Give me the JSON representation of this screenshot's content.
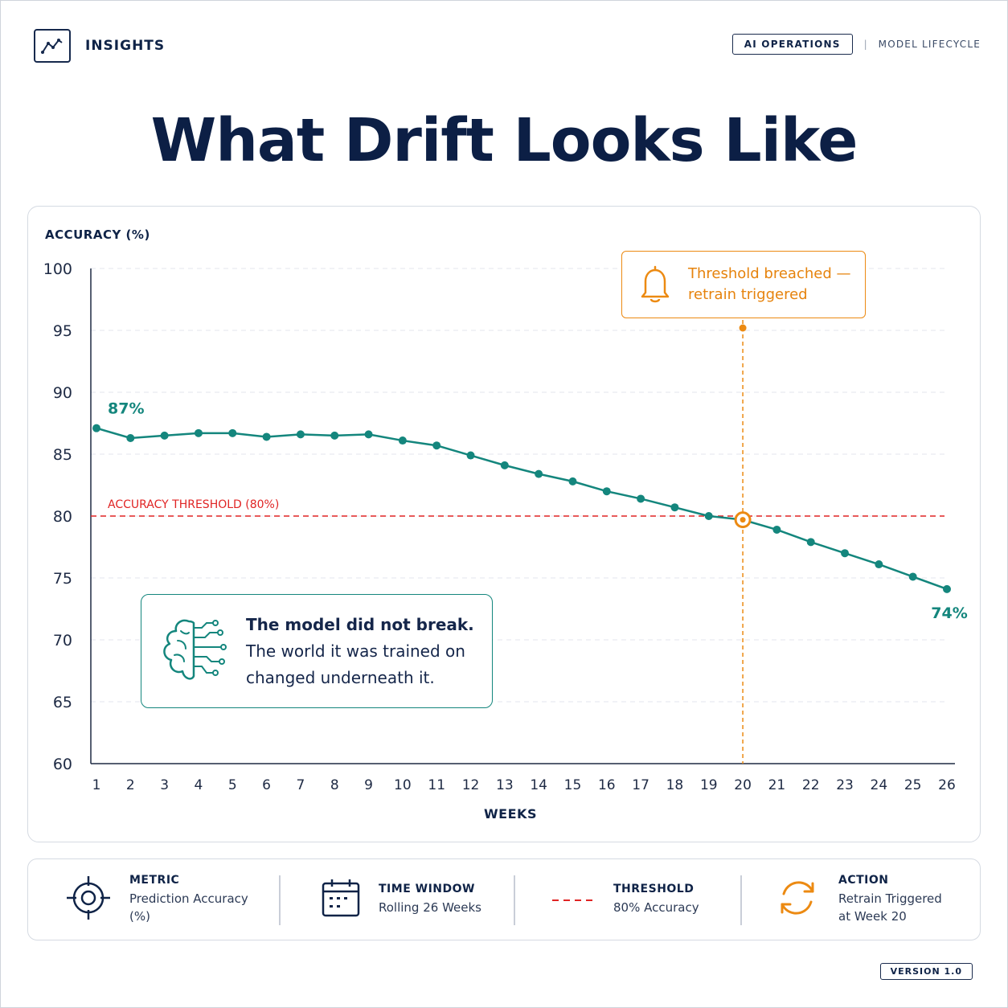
{
  "header": {
    "brand": "INSIGHTS",
    "badge": "AI OPERATIONS",
    "separator": "|",
    "crumb": "MODEL LIFECYCLE"
  },
  "title": "What Drift Looks Like",
  "chart_data": {
    "type": "line",
    "ylabel": "ACCURACY (%)",
    "xlabel": "WEEKS",
    "ylim": [
      60,
      100
    ],
    "yticks": [
      100,
      95,
      90,
      85,
      80,
      75,
      70,
      65,
      60
    ],
    "x": [
      1,
      2,
      3,
      4,
      5,
      6,
      7,
      8,
      9,
      10,
      11,
      12,
      13,
      14,
      15,
      16,
      17,
      18,
      19,
      20,
      21,
      22,
      23,
      24,
      25,
      26
    ],
    "series": [
      {
        "values": [
          87.1,
          86.3,
          86.5,
          86.7,
          86.7,
          86.4,
          86.6,
          86.5,
          86.6,
          86.1,
          85.7,
          84.9,
          84.1,
          83.4,
          82.8,
          82.0,
          81.4,
          80.7,
          80.0,
          79.7,
          78.9,
          77.9,
          77.0,
          76.1,
          75.1,
          74.1
        ]
      }
    ],
    "start_label": "87%",
    "end_label": "74%",
    "threshold": {
      "value": 80,
      "label": "ACCURACY THRESHOLD (80%)"
    },
    "event_week": 20,
    "grid": true,
    "colors": {
      "line": "#14867d",
      "threshold": "#e02424",
      "event": "#ec8a12",
      "axis": "#1e2a44",
      "grid": "#e3e6ec"
    }
  },
  "alert": {
    "line1": "Threshold breached —",
    "line2": "retrain triggered",
    "icon": "bell-icon"
  },
  "note": {
    "bold": "The model did not break.",
    "line2": "The world it was trained on",
    "line3": "changed underneath it.",
    "icon": "brain-circuit-icon"
  },
  "legend": {
    "metric": {
      "title": "METRIC",
      "value1": "Prediction Accuracy",
      "value2": "(%)",
      "icon": "target-icon"
    },
    "window": {
      "title": "TIME WINDOW",
      "value": "Rolling 26 Weeks",
      "icon": "calendar-icon"
    },
    "threshold": {
      "title": "THRESHOLD",
      "value": "80% Accuracy",
      "icon": "dashed-line-icon"
    },
    "action": {
      "title": "ACTION",
      "value1": "Retrain Triggered",
      "value2": "at Week 20",
      "icon": "refresh-icon"
    }
  },
  "version": "VERSION 1.0"
}
